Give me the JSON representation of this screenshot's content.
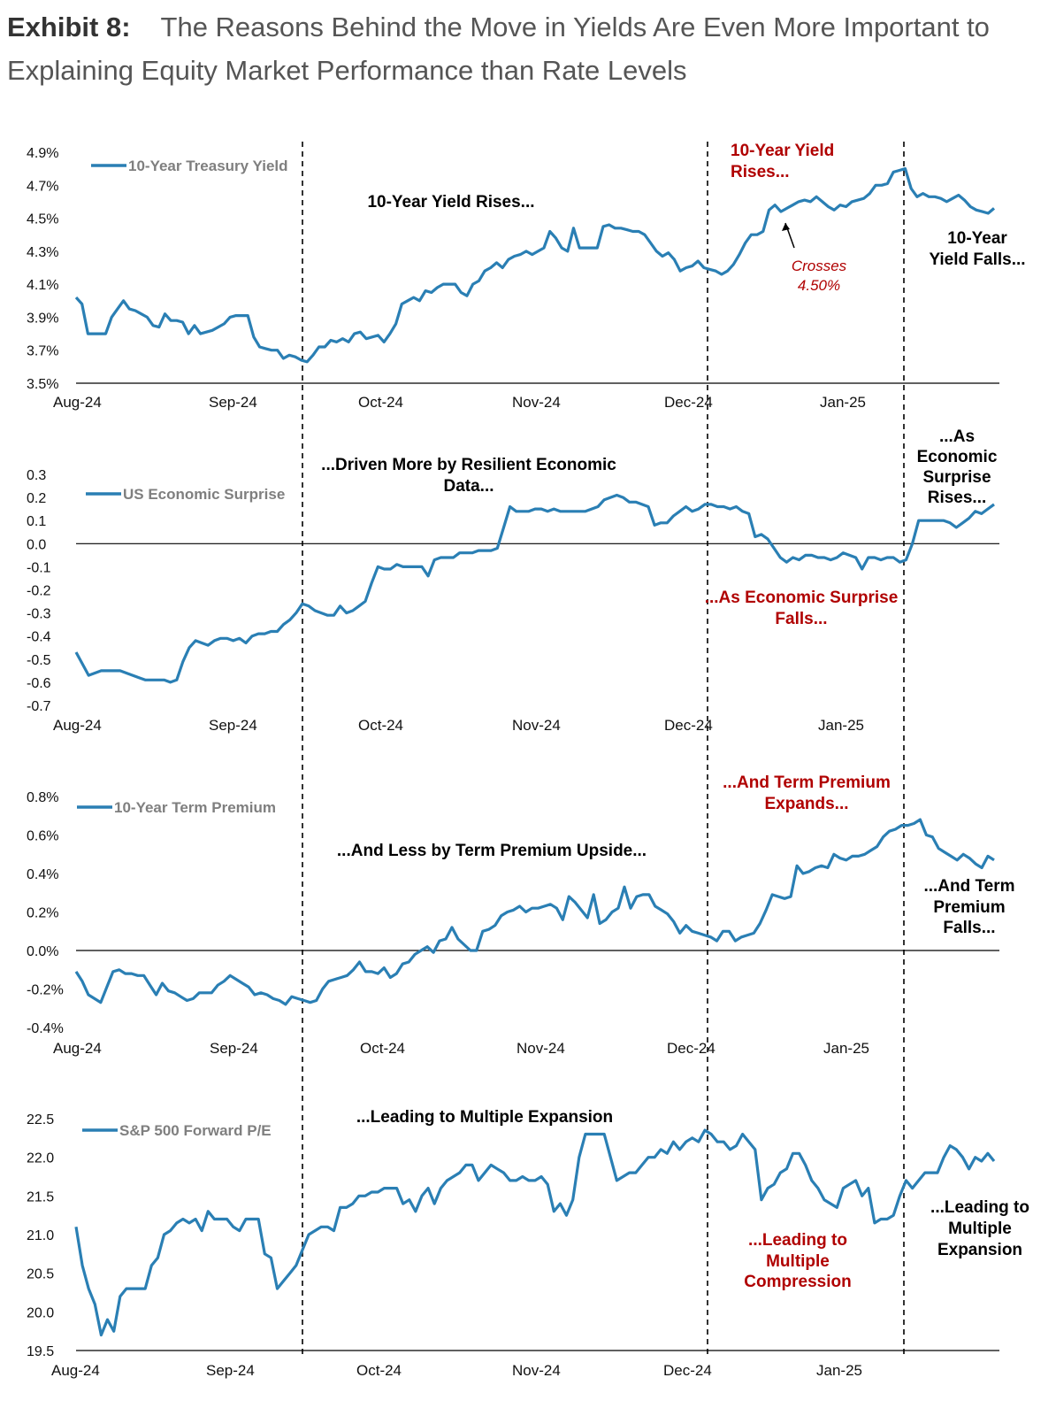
{
  "header": {
    "exhibit": "Exhibit 8:",
    "title": "The Reasons Behind the Move in Yields Are Even More Important to Explaining Equity Market Performance than Rate Levels"
  },
  "colors": {
    "line": "#2a7fb4",
    "annotation_black": "#000000",
    "annotation_red": "#b00000",
    "legend_text": "#7f7f7f"
  },
  "chart_data": [
    {
      "type": "line",
      "legend": "10-Year Treasury Yield",
      "ylim": [
        3.5,
        4.9
      ],
      "y_ticks": [
        "4.9%",
        "4.7%",
        "4.5%",
        "4.3%",
        "4.1%",
        "3.9%",
        "3.7%",
        "3.5%"
      ],
      "x_ticks": [
        "Aug-24",
        "Sep-24",
        "Oct-24",
        "Nov-24",
        "Dec-24",
        "Jan-25"
      ],
      "series": [
        {
          "name": "10-Year Treasury Yield",
          "values": [
            4.02,
            3.98,
            3.8,
            3.8,
            3.8,
            3.8,
            3.9,
            3.95,
            4.0,
            3.95,
            3.94,
            3.92,
            3.9,
            3.85,
            3.84,
            3.92,
            3.88,
            3.88,
            3.87,
            3.8,
            3.85,
            3.8,
            3.81,
            3.82,
            3.84,
            3.86,
            3.9,
            3.91,
            3.91,
            3.91,
            3.78,
            3.72,
            3.71,
            3.7,
            3.7,
            3.65,
            3.67,
            3.66,
            3.64,
            3.63,
            3.67,
            3.72,
            3.72,
            3.76,
            3.75,
            3.77,
            3.75,
            3.8,
            3.81,
            3.77,
            3.78,
            3.79,
            3.75,
            3.8,
            3.86,
            3.98,
            4.0,
            4.02,
            4.0,
            4.06,
            4.05,
            4.08,
            4.1,
            4.1,
            4.1,
            4.05,
            4.03,
            4.1,
            4.12,
            4.18,
            4.2,
            4.23,
            4.2,
            4.25,
            4.27,
            4.28,
            4.3,
            4.28,
            4.3,
            4.32,
            4.42,
            4.38,
            4.32,
            4.3,
            4.44,
            4.32,
            4.32,
            4.32,
            4.32,
            4.45,
            4.46,
            4.44,
            4.44,
            4.43,
            4.42,
            4.42,
            4.4,
            4.35,
            4.3,
            4.27,
            4.29,
            4.25,
            4.18,
            4.2,
            4.21,
            4.24,
            4.2,
            4.19,
            4.18,
            4.16,
            4.18,
            4.22,
            4.28,
            4.35,
            4.4,
            4.4,
            4.42,
            4.55,
            4.58,
            4.54,
            4.56,
            4.58,
            4.6,
            4.61,
            4.6,
            4.63,
            4.6,
            4.57,
            4.55,
            4.58,
            4.57,
            4.6,
            4.61,
            4.62,
            4.65,
            4.7,
            4.7,
            4.71,
            4.78,
            4.79,
            4.8,
            4.68,
            4.63,
            4.65,
            4.63,
            4.63,
            4.62,
            4.6,
            4.62,
            4.64,
            4.61,
            4.57,
            4.55,
            4.54,
            4.53,
            4.56
          ]
        }
      ],
      "annotations": [
        {
          "text": "10-Year Yield Rises...",
          "color": "black"
        },
        {
          "text": "10-Year Yield",
          "color": "red"
        },
        {
          "text": "Rises...",
          "color": "red"
        },
        {
          "text": "Crosses",
          "color": "red"
        },
        {
          "text": "4.50%",
          "color": "red"
        },
        {
          "text": "10-Year",
          "color": "black"
        },
        {
          "text": "Yield Falls...",
          "color": "black"
        }
      ]
    },
    {
      "type": "line",
      "legend": "US Economic Surprise",
      "ylim": [
        -0.7,
        0.3
      ],
      "y_ticks": [
        "0.3",
        "0.2",
        "0.1",
        "0.0",
        "-0.1",
        "-0.2",
        "-0.3",
        "-0.4",
        "-0.5",
        "-0.6",
        "-0.7"
      ],
      "x_ticks": [
        "Aug-24",
        "Sep-24",
        "Oct-24",
        "Nov-24",
        "Dec-24",
        "Jan-25"
      ],
      "series": [
        {
          "name": "US Economic Surprise",
          "values": [
            -0.47,
            -0.52,
            -0.57,
            -0.56,
            -0.55,
            -0.55,
            -0.55,
            -0.55,
            -0.56,
            -0.57,
            -0.58,
            -0.59,
            -0.59,
            -0.59,
            -0.59,
            -0.6,
            -0.59,
            -0.51,
            -0.45,
            -0.42,
            -0.43,
            -0.44,
            -0.42,
            -0.41,
            -0.41,
            -0.42,
            -0.41,
            -0.43,
            -0.4,
            -0.39,
            -0.39,
            -0.38,
            -0.38,
            -0.35,
            -0.33,
            -0.3,
            -0.26,
            -0.27,
            -0.29,
            -0.3,
            -0.31,
            -0.31,
            -0.27,
            -0.3,
            -0.29,
            -0.27,
            -0.25,
            -0.17,
            -0.1,
            -0.11,
            -0.11,
            -0.09,
            -0.1,
            -0.1,
            -0.1,
            -0.1,
            -0.14,
            -0.07,
            -0.06,
            -0.06,
            -0.06,
            -0.04,
            -0.04,
            -0.04,
            -0.03,
            -0.03,
            -0.03,
            -0.02,
            0.07,
            0.16,
            0.14,
            0.14,
            0.14,
            0.15,
            0.15,
            0.14,
            0.15,
            0.14,
            0.14,
            0.14,
            0.14,
            0.14,
            0.15,
            0.16,
            0.19,
            0.2,
            0.21,
            0.2,
            0.18,
            0.18,
            0.17,
            0.16,
            0.08,
            0.09,
            0.09,
            0.12,
            0.14,
            0.16,
            0.14,
            0.15,
            0.17,
            0.17,
            0.16,
            0.16,
            0.15,
            0.16,
            0.14,
            0.13,
            0.03,
            0.04,
            0.02,
            -0.02,
            -0.06,
            -0.08,
            -0.06,
            -0.07,
            -0.05,
            -0.05,
            -0.06,
            -0.06,
            -0.07,
            -0.06,
            -0.04,
            -0.05,
            -0.06,
            -0.11,
            -0.06,
            -0.06,
            -0.07,
            -0.06,
            -0.06,
            -0.08,
            -0.07,
            0.0,
            0.1,
            0.1,
            0.1,
            0.1,
            0.1,
            0.09,
            0.07,
            0.09,
            0.11,
            0.14,
            0.13,
            0.15,
            0.17
          ]
        }
      ],
      "annotations": [
        {
          "text": "...Driven More by Resilient Economic",
          "color": "black"
        },
        {
          "text": "Data...",
          "color": "black"
        },
        {
          "text": "...As Economic Surprise",
          "color": "red"
        },
        {
          "text": "Falls...",
          "color": "red"
        },
        {
          "text": "...As",
          "color": "black"
        },
        {
          "text": "Economic",
          "color": "black"
        },
        {
          "text": "Surprise",
          "color": "black"
        },
        {
          "text": "Rises...",
          "color": "black"
        }
      ]
    },
    {
      "type": "line",
      "legend": "10-Year Term Premium",
      "ylim": [
        -0.4,
        0.8
      ],
      "y_ticks": [
        "0.8%",
        "0.6%",
        "0.4%",
        "0.2%",
        "0.0%",
        "-0.2%",
        "-0.4%"
      ],
      "x_ticks": [
        "Aug-24",
        "Sep-24",
        "Oct-24",
        "Nov-24",
        "Dec-24",
        "Jan-25"
      ],
      "series": [
        {
          "name": "10-Year Term Premium",
          "values": [
            -0.11,
            -0.16,
            -0.23,
            -0.25,
            -0.27,
            -0.19,
            -0.11,
            -0.1,
            -0.12,
            -0.12,
            -0.13,
            -0.13,
            -0.18,
            -0.23,
            -0.17,
            -0.21,
            -0.22,
            -0.24,
            -0.26,
            -0.25,
            -0.22,
            -0.22,
            -0.22,
            -0.18,
            -0.16,
            -0.13,
            -0.15,
            -0.17,
            -0.19,
            -0.23,
            -0.22,
            -0.23,
            -0.25,
            -0.26,
            -0.28,
            -0.24,
            -0.25,
            -0.26,
            -0.27,
            -0.26,
            -0.2,
            -0.16,
            -0.15,
            -0.14,
            -0.13,
            -0.1,
            -0.06,
            -0.11,
            -0.11,
            -0.12,
            -0.09,
            -0.14,
            -0.12,
            -0.07,
            -0.06,
            -0.02,
            0.0,
            0.02,
            -0.01,
            0.05,
            0.06,
            0.12,
            0.06,
            0.03,
            0.0,
            0.0,
            0.1,
            0.11,
            0.13,
            0.18,
            0.2,
            0.21,
            0.23,
            0.2,
            0.22,
            0.22,
            0.23,
            0.24,
            0.22,
            0.16,
            0.28,
            0.25,
            0.21,
            0.17,
            0.29,
            0.14,
            0.16,
            0.2,
            0.22,
            0.33,
            0.22,
            0.28,
            0.29,
            0.29,
            0.23,
            0.21,
            0.19,
            0.15,
            0.09,
            0.13,
            0.1,
            0.09,
            0.08,
            0.07,
            0.05,
            0.1,
            0.1,
            0.05,
            0.07,
            0.08,
            0.09,
            0.14,
            0.21,
            0.29,
            0.28,
            0.27,
            0.28,
            0.44,
            0.4,
            0.41,
            0.43,
            0.44,
            0.43,
            0.5,
            0.48,
            0.47,
            0.49,
            0.49,
            0.5,
            0.52,
            0.54,
            0.59,
            0.62,
            0.63,
            0.65,
            0.65,
            0.66,
            0.68,
            0.6,
            0.59,
            0.53,
            0.51,
            0.49,
            0.47,
            0.5,
            0.48,
            0.45,
            0.43,
            0.49,
            0.47
          ]
        }
      ],
      "annotations": [
        {
          "text": "...And Less by Term Premium Upside...",
          "color": "black"
        },
        {
          "text": "...And Term Premium",
          "color": "red"
        },
        {
          "text": "Expands...",
          "color": "red"
        },
        {
          "text": "...And Term",
          "color": "black"
        },
        {
          "text": "Premium",
          "color": "black"
        },
        {
          "text": "Falls...",
          "color": "black"
        }
      ]
    },
    {
      "type": "line",
      "legend": "S&P 500 Forward P/E",
      "ylim": [
        19.5,
        22.5
      ],
      "y_ticks": [
        "22.5",
        "22.0",
        "21.5",
        "21.0",
        "20.5",
        "20.0",
        "19.5"
      ],
      "x_ticks": [
        "Aug-24",
        "Sep-24",
        "Oct-24",
        "Nov-24",
        "Dec-24",
        "Jan-25"
      ],
      "series": [
        {
          "name": "S&P 500 Forward P/E",
          "values": [
            21.1,
            20.6,
            20.3,
            20.1,
            19.7,
            19.9,
            19.75,
            20.2,
            20.3,
            20.3,
            20.3,
            20.3,
            20.6,
            20.7,
            21.0,
            21.05,
            21.15,
            21.2,
            21.15,
            21.2,
            21.05,
            21.3,
            21.2,
            21.2,
            21.2,
            21.1,
            21.05,
            21.2,
            21.2,
            21.2,
            20.75,
            20.7,
            20.3,
            20.4,
            20.5,
            20.6,
            20.8,
            21.0,
            21.05,
            21.1,
            21.1,
            21.05,
            21.35,
            21.35,
            21.4,
            21.5,
            21.5,
            21.55,
            21.55,
            21.6,
            21.6,
            21.6,
            21.4,
            21.45,
            21.3,
            21.5,
            21.6,
            21.4,
            21.6,
            21.7,
            21.75,
            21.8,
            21.9,
            21.9,
            21.7,
            21.8,
            21.9,
            21.85,
            21.8,
            21.7,
            21.7,
            21.75,
            21.7,
            21.7,
            21.75,
            21.65,
            21.3,
            21.4,
            21.25,
            21.45,
            22.0,
            22.3,
            22.3,
            22.3,
            22.3,
            22.0,
            21.7,
            21.75,
            21.8,
            21.8,
            21.9,
            22.0,
            22.0,
            22.1,
            22.05,
            22.2,
            22.1,
            22.2,
            22.25,
            22.2,
            22.35,
            22.3,
            22.2,
            22.2,
            22.1,
            22.15,
            22.3,
            22.2,
            22.1,
            21.45,
            21.6,
            21.65,
            21.8,
            21.85,
            22.05,
            22.05,
            21.9,
            21.7,
            21.6,
            21.45,
            21.4,
            21.35,
            21.6,
            21.65,
            21.7,
            21.5,
            21.6,
            21.15,
            21.2,
            21.2,
            21.25,
            21.5,
            21.7,
            21.6,
            21.7,
            21.8,
            21.8,
            21.8,
            22.0,
            22.15,
            22.1,
            22.0,
            21.85,
            22.0,
            21.95,
            22.05,
            21.95
          ]
        }
      ],
      "annotations": [
        {
          "text": "...Leading to Multiple Expansion",
          "color": "black"
        },
        {
          "text": "...Leading to",
          "color": "red"
        },
        {
          "text": "Multiple",
          "color": "red"
        },
        {
          "text": "Compression",
          "color": "red"
        },
        {
          "text": "...Leading to",
          "color": "black"
        },
        {
          "text": "Multiple",
          "color": "black"
        },
        {
          "text": "Expansion",
          "color": "black"
        }
      ]
    }
  ]
}
